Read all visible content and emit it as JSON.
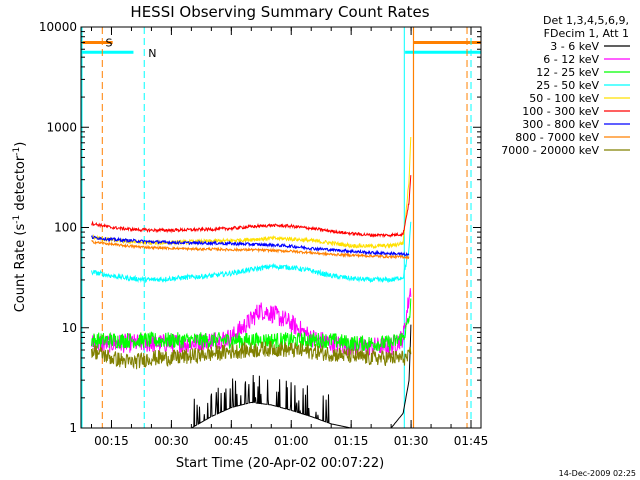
{
  "chart_data": {
    "type": "line",
    "title": "HESSI Observing Summary Count Rates",
    "xlabel": "Start Time (20-Apr-02 00:07:22)",
    "ylabel_main": "Count Rate (s",
    "ylabel_sup1": "-1",
    "ylabel_mid": " detector",
    "ylabel_sup2": "-1",
    "ylabel_end": ")",
    "yscale": "log",
    "ylim": [
      1,
      10000
    ],
    "xlim_minutes": [
      7.37,
      107.5
    ],
    "x_ticks": [
      {
        "value": 15,
        "label": "00:15"
      },
      {
        "value": 30,
        "label": "00:30"
      },
      {
        "value": 45,
        "label": "00:45"
      },
      {
        "value": 60,
        "label": "01:00"
      },
      {
        "value": 75,
        "label": "01:15"
      },
      {
        "value": 90,
        "label": "01:30"
      },
      {
        "value": 105,
        "label": "01:45"
      }
    ],
    "y_ticks": [
      {
        "value": 1,
        "label": "1"
      },
      {
        "value": 10,
        "label": "10"
      },
      {
        "value": 100,
        "label": "100"
      },
      {
        "value": 1000,
        "label": "1000"
      },
      {
        "value": 10000,
        "label": "10000"
      }
    ],
    "legend_header": [
      "Det 1,3,4,5,6,9,",
      "FDecim 1, Att 1"
    ],
    "series": [
      {
        "name": "3 - 6 keV",
        "color": "#000000",
        "x": [
          35,
          40,
          45,
          50,
          55,
          60,
          65,
          70,
          75,
          80,
          85,
          88,
          89.5,
          90
        ],
        "y": [
          1,
          1.3,
          1.6,
          1.8,
          1.7,
          1.5,
          1.3,
          1.1,
          1,
          1,
          1,
          1.4,
          3,
          12
        ]
      },
      {
        "name": "6 - 12 keV",
        "color": "#ff00ff",
        "x": [
          10,
          15,
          20,
          25,
          30,
          35,
          40,
          45,
          50,
          52,
          55,
          60,
          65,
          70,
          75,
          80,
          85,
          88,
          89.5,
          90
        ],
        "y": [
          7,
          7,
          7,
          7,
          7,
          7,
          7.5,
          8,
          12,
          15,
          14,
          11,
          8,
          7,
          6.5,
          6.5,
          6.5,
          8,
          20,
          25
        ]
      },
      {
        "name": "12 - 25 keV",
        "color": "#00ff00",
        "x": [
          10,
          15,
          20,
          25,
          30,
          35,
          40,
          45,
          50,
          55,
          60,
          65,
          70,
          75,
          80,
          85,
          88,
          89.5,
          90
        ],
        "y": [
          7.5,
          7.5,
          7.5,
          7.5,
          7.5,
          7.5,
          7.5,
          7.5,
          7.5,
          7.5,
          7.5,
          7.5,
          7.5,
          7,
          7,
          7,
          8,
          12,
          18
        ]
      },
      {
        "name": "25 - 50 keV",
        "color": "#00ffff",
        "x": [
          10,
          15,
          20,
          25,
          30,
          35,
          40,
          45,
          50,
          55,
          60,
          65,
          70,
          75,
          80,
          85,
          88,
          89.5,
          90
        ],
        "y": [
          36,
          33,
          31,
          30,
          31,
          32,
          33,
          35,
          38,
          41,
          40,
          37,
          33,
          31,
          30,
          30,
          32,
          60,
          130
        ]
      },
      {
        "name": "50 - 100 keV",
        "color": "#ffe000",
        "x": [
          10,
          15,
          20,
          25,
          30,
          35,
          40,
          45,
          50,
          55,
          60,
          65,
          70,
          75,
          80,
          85,
          88,
          89.5,
          90
        ],
        "y": [
          80,
          75,
          72,
          70,
          71,
          72,
          73,
          74,
          76,
          78,
          77,
          74,
          70,
          66,
          65,
          66,
          70,
          300,
          1000
        ]
      },
      {
        "name": "100 - 300 keV",
        "color": "#ff0000",
        "x": [
          10,
          15,
          20,
          25,
          30,
          35,
          40,
          45,
          50,
          55,
          60,
          65,
          70,
          75,
          80,
          85,
          88,
          89.5,
          90
        ],
        "y": [
          110,
          100,
          96,
          94,
          94,
          95,
          96,
          98,
          102,
          105,
          103,
          98,
          92,
          87,
          84,
          84,
          86,
          180,
          370
        ]
      },
      {
        "name": "300 - 800 keV",
        "color": "#0000ff",
        "x": [
          10,
          15,
          20,
          25,
          30,
          35,
          40,
          45,
          50,
          55,
          60,
          65,
          70,
          75,
          80,
          85,
          88,
          89.5
        ],
        "y": [
          80,
          76,
          74,
          72,
          71,
          70,
          70,
          69,
          68,
          67,
          65,
          62,
          60,
          58,
          56,
          55,
          54,
          53
        ]
      },
      {
        "name": "800 - 7000 keV",
        "color": "#ff8000",
        "x": [
          10,
          15,
          20,
          25,
          30,
          35,
          40,
          45,
          50,
          55,
          60,
          65,
          70,
          75,
          80,
          85,
          88,
          89.5
        ],
        "y": [
          72,
          68,
          65,
          63,
          62,
          61,
          61,
          60,
          60,
          59,
          58,
          56,
          54,
          53,
          52,
          51,
          51,
          50
        ]
      },
      {
        "name": "7000 - 20000 keV",
        "color": "#808000",
        "x": [
          10,
          15,
          20,
          25,
          30,
          35,
          40,
          45,
          50,
          55,
          60,
          65,
          70,
          75,
          80,
          85,
          88,
          89.5,
          90
        ],
        "y": [
          6,
          5,
          4.5,
          5,
          5,
          5.2,
          5.5,
          5.8,
          6,
          6.2,
          6,
          5.8,
          5.5,
          5.2,
          5,
          5,
          5,
          5,
          6
        ]
      }
    ],
    "annotations": [
      {
        "label": "S",
        "color": "#ff8000",
        "attenuator_level": 7000
      },
      {
        "label": "N",
        "color": "#00ffff",
        "attenuator_level": 5600
      }
    ],
    "timestamp": "14-Dec-2009 02:25"
  }
}
